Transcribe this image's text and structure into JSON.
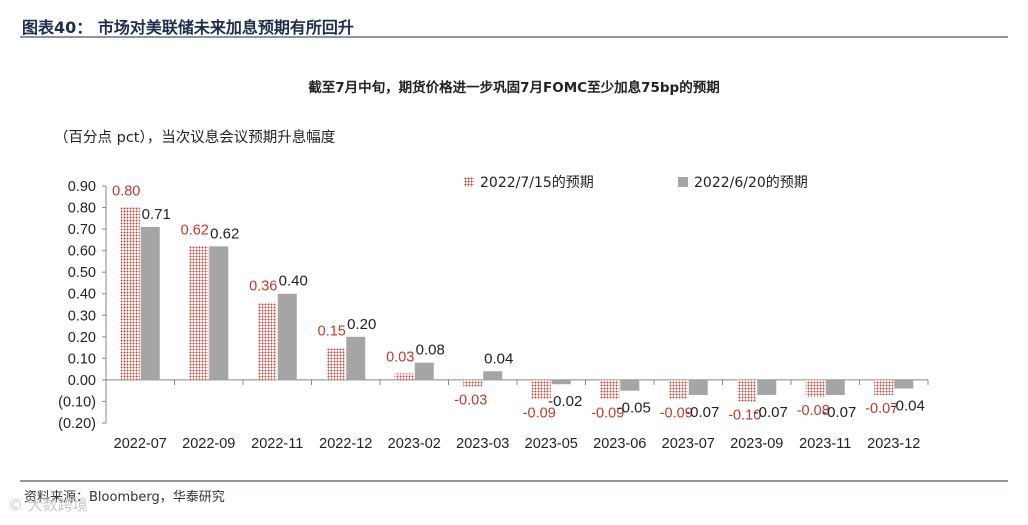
{
  "figure_title": "图表40：  市场对美联储未来加息预期有所回升",
  "source_text": "资料来源：Bloomberg，华泰研究",
  "watermark_text": "© 大数跨境",
  "chart_data": {
    "type": "bar",
    "title": "截至7月中旬，期货价格进一步巩固7月FOMC至少加息75bp的预期",
    "ylabel": "（百分点 pct），当次议息会议预期升息幅度",
    "categories": [
      "2022-07",
      "2022-09",
      "2022-11",
      "2022-12",
      "2023-02",
      "2023-03",
      "2023-05",
      "2023-06",
      "2023-07",
      "2023-09",
      "2023-11",
      "2023-12"
    ],
    "series": [
      {
        "name": "2022/7/15的预期",
        "color": "#c0392b",
        "pattern": "dots",
        "values": [
          0.8,
          0.62,
          0.36,
          0.15,
          0.03,
          -0.03,
          -0.09,
          -0.09,
          -0.09,
          -0.1,
          -0.08,
          -0.07
        ],
        "labels": [
          "0.80",
          "0.62",
          "0.36",
          "0.15",
          "0.03",
          "-0.03",
          "-0.09",
          "-0.09",
          "-0.09",
          "-0.10",
          "-0.08",
          "-0.07"
        ]
      },
      {
        "name": "2022/6/20的预期",
        "color": "#a5a5a5",
        "pattern": "solid",
        "values": [
          0.71,
          0.62,
          0.4,
          0.2,
          0.08,
          0.04,
          -0.02,
          -0.05,
          -0.07,
          -0.07,
          -0.07,
          -0.04
        ],
        "labels": [
          "0.71",
          "0.62",
          "0.40",
          "0.20",
          "0.08",
          "0.04",
          "-0.02",
          "-0.05",
          "-0.07",
          "-0.07",
          "-0.07",
          "-0.04"
        ]
      }
    ],
    "yticks": [
      "0.90",
      "0.80",
      "0.70",
      "0.60",
      "0.50",
      "0.40",
      "0.30",
      "0.20",
      "0.10",
      "0.00",
      "(0.10)",
      "(0.20)"
    ],
    "ylim": [
      -0.2,
      0.9
    ],
    "legend_position": "top-right",
    "grid": false
  }
}
